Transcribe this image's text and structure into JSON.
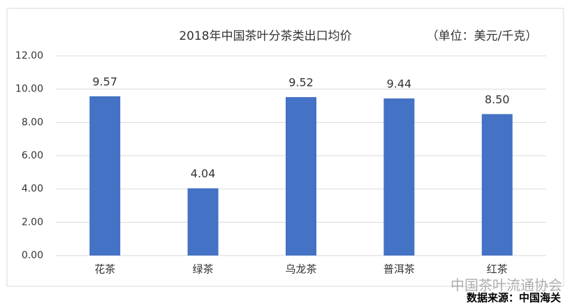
{
  "chart_data": {
    "type": "bar",
    "title": "2018年中国茶叶分茶类出口均价",
    "unit_note": "（单位：美元/千克）",
    "categories": [
      "花茶",
      "绿茶",
      "乌龙茶",
      "普洱茶",
      "红茶"
    ],
    "values": [
      9.57,
      4.04,
      9.52,
      9.44,
      8.5
    ],
    "value_labels": [
      "9.57",
      "4.04",
      "9.52",
      "9.44",
      "8.50"
    ],
    "color": "#4472c4",
    "ylim": [
      0,
      12
    ],
    "yticks": [
      {
        "value": 0,
        "label": "0.00"
      },
      {
        "value": 2,
        "label": "2.00"
      },
      {
        "value": 4,
        "label": "4.00"
      },
      {
        "value": 6,
        "label": "6.00"
      },
      {
        "value": 8,
        "label": "8.00"
      },
      {
        "value": 10,
        "label": "10.00"
      },
      {
        "value": 12,
        "label": "12.00"
      }
    ],
    "grid": true,
    "watermark": "中国茶叶流通协会",
    "source": "数据来源：中国海关"
  }
}
